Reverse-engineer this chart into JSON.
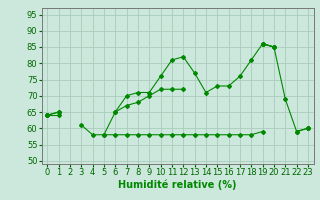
{
  "xlabel": "Humidité relative (%)",
  "xlim": [
    -0.5,
    23.5
  ],
  "ylim": [
    49,
    97
  ],
  "yticks": [
    50,
    55,
    60,
    65,
    70,
    75,
    80,
    85,
    90,
    95
  ],
  "xticks": [
    0,
    1,
    2,
    3,
    4,
    5,
    6,
    7,
    8,
    9,
    10,
    11,
    12,
    13,
    14,
    15,
    16,
    17,
    18,
    19,
    20,
    21,
    22,
    23
  ],
  "bg_color": "#cce8dc",
  "grid_color": "#aaccbb",
  "line_color": "#008800",
  "series1": [
    64,
    65,
    null,
    61,
    58,
    58,
    65,
    70,
    71,
    71,
    76,
    81,
    82,
    77,
    71,
    73,
    73,
    76,
    81,
    86,
    85,
    69,
    59,
    60
  ],
  "series2": [
    64,
    65,
    null,
    null,
    null,
    58,
    58,
    58,
    58,
    58,
    58,
    58,
    58,
    58,
    58,
    58,
    58,
    58,
    58,
    59,
    null,
    null,
    59,
    60
  ],
  "series3": [
    64,
    64,
    null,
    null,
    null,
    null,
    65,
    67,
    68,
    70,
    72,
    72,
    72,
    null,
    null,
    null,
    null,
    null,
    null,
    86,
    85,
    null,
    null,
    null
  ],
  "series4": [
    64,
    null,
    null,
    null,
    null,
    null,
    null,
    null,
    null,
    null,
    null,
    null,
    null,
    null,
    null,
    null,
    null,
    null,
    null,
    86,
    85,
    null,
    null,
    60
  ],
  "xlabel_fontsize": 7,
  "tick_fontsize": 6
}
